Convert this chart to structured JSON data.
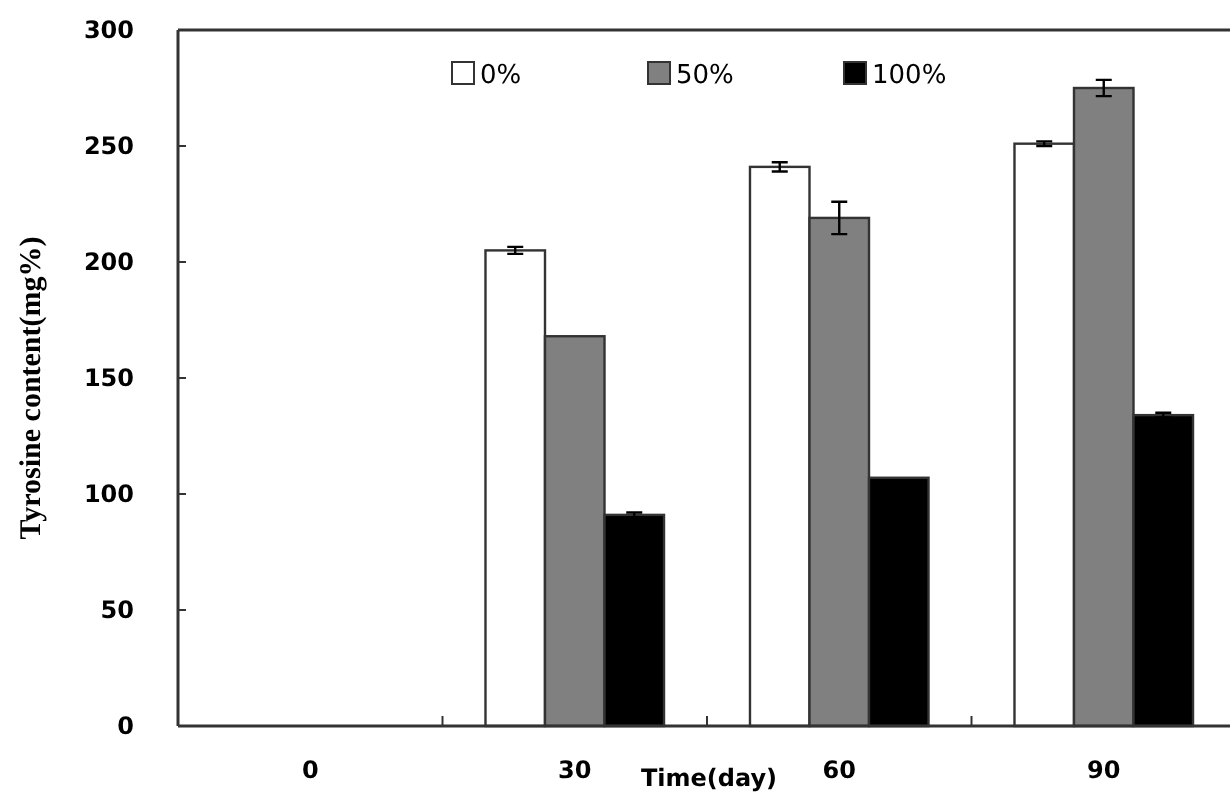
{
  "chart_data": {
    "type": "bar",
    "xlabel": "Time(day)",
    "ylabel": "Tyrosine content(mg%)",
    "categories": [
      "0",
      "30",
      "60",
      "90"
    ],
    "series": [
      {
        "name": "0%",
        "color": "#ffffff",
        "values": [
          null,
          205,
          241,
          251
        ],
        "errors": [
          null,
          1.5,
          2,
          1
        ]
      },
      {
        "name": "50%",
        "color": "#808080",
        "values": [
          null,
          168,
          219,
          275
        ],
        "errors": [
          null,
          null,
          7,
          3.5
        ]
      },
      {
        "name": "100%",
        "color": "#000000",
        "values": [
          null,
          91,
          107,
          134
        ],
        "errors": [
          null,
          1,
          null,
          1
        ]
      }
    ],
    "ylim": [
      0,
      300
    ],
    "yticks": [
      0,
      50,
      100,
      150,
      200,
      250,
      300
    ],
    "legend": "top",
    "grid": false
  }
}
